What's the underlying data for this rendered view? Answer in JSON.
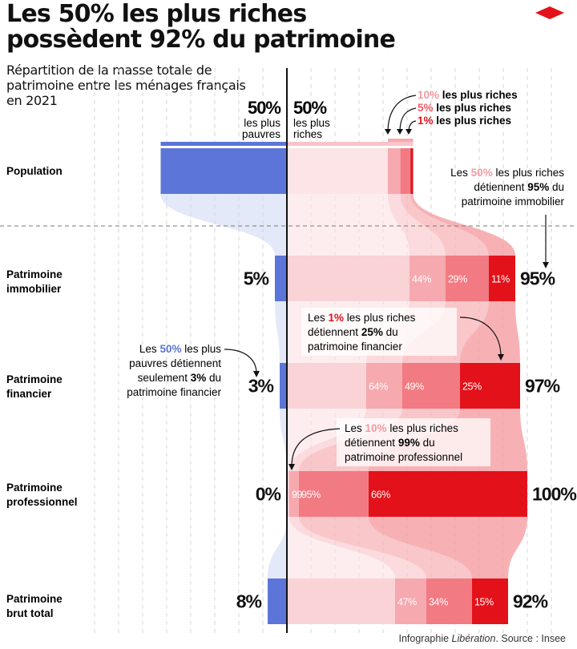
{
  "header": {
    "title_line1": "Les 50% les plus riches",
    "title_line2": "possèdent 92% du patrimoine",
    "subtitle": "Répartition de la masse totale de patrimoine entre les ménages français en 2021"
  },
  "columns": {
    "left_pct": "50%",
    "left_label_1": "les plus",
    "left_label_2": "pauvres",
    "right_pct": "50%",
    "right_label_1": "les plus",
    "right_label_2": "riches"
  },
  "legend": {
    "top10_pct": "10%",
    "top10_text": " les plus riches",
    "top5_pct": "5%",
    "top5_text": " les plus riches",
    "top1_pct": "1%",
    "top1_text": " les plus riches"
  },
  "annotations": {
    "immo": {
      "l1a": "Les ",
      "l1b": "50%",
      "l1c": " les plus riches",
      "l2a": "détiennent ",
      "l2b": "95%",
      "l2c": " du",
      "l3": "patrimoine immobilier"
    },
    "fin_rich": {
      "l1a": "Les ",
      "l1b": "1%",
      "l1c": " les plus riches",
      "l2a": "détiennent ",
      "l2b": "25%",
      "l2c": " du",
      "l3": "patrimoine financier"
    },
    "fin_poor": {
      "l1a": "Les ",
      "l1b": "50%",
      "l1c": " les plus",
      "l2": "pauvres détiennent",
      "l3a": "seulement ",
      "l3b": "3%",
      "l3c": " du",
      "l4": "patrimoine financier"
    },
    "pro": {
      "l1a": "Les ",
      "l1b": "10%",
      "l1c": " les plus riches",
      "l2a": "détiennent ",
      "l2b": "99%",
      "l2c": " du",
      "l3": "patrimoine professionnel"
    }
  },
  "row_labels": {
    "population": "Population",
    "immo_1": "Patrimoine",
    "immo_2": "immobilier",
    "fin_1": "Patrimoine",
    "fin_2": "financier",
    "pro_1": "Patrimoine",
    "pro_2": "professionnel",
    "brut_1": "Patrimoine",
    "brut_2": "brut total"
  },
  "chart_data": {
    "type": "bar",
    "orientation": "horizontal",
    "title": "Les 50% les plus riches possèdent 92% du patrimoine",
    "categories": [
      "Patrimoine immobilier",
      "Patrimoine financier",
      "Patrimoine professionnel",
      "Patrimoine brut total"
    ],
    "population_split": {
      "poorest_50": 50,
      "richest_50": 50,
      "top_10": 10,
      "top_5": 5,
      "top_1": 1
    },
    "series": [
      {
        "name": "50% les plus pauvres",
        "values": [
          5,
          3,
          0,
          8
        ],
        "color": "#5b76d8"
      },
      {
        "name": "50% les plus riches",
        "values": [
          95,
          97,
          100,
          92
        ],
        "color": "#f9d3d6"
      },
      {
        "name": "10% les plus riches",
        "values": [
          44,
          64,
          99,
          47
        ],
        "color": "#f6a9af"
      },
      {
        "name": "5% les plus riches",
        "values": [
          29,
          49,
          95,
          34
        ],
        "color": "#f27a82"
      },
      {
        "name": "1% les plus riches",
        "values": [
          11,
          25,
          66,
          15
        ],
        "color": "#e3121a"
      }
    ],
    "value_labels": {
      "poor": [
        "5%",
        "3%",
        "0%",
        "8%"
      ],
      "rich": [
        "95%",
        "97%",
        "100%",
        "92%"
      ],
      "top10": [
        "44%",
        "64%",
        "99",
        "47%"
      ],
      "top5": [
        "29%",
        "49%",
        "95%",
        "34%"
      ],
      "top1": [
        "11%",
        "25%",
        "66%",
        "15%"
      ]
    }
  },
  "footer": {
    "prefix": "Infographie ",
    "brand": "Libération",
    "suffix": ". Source : Insee"
  }
}
